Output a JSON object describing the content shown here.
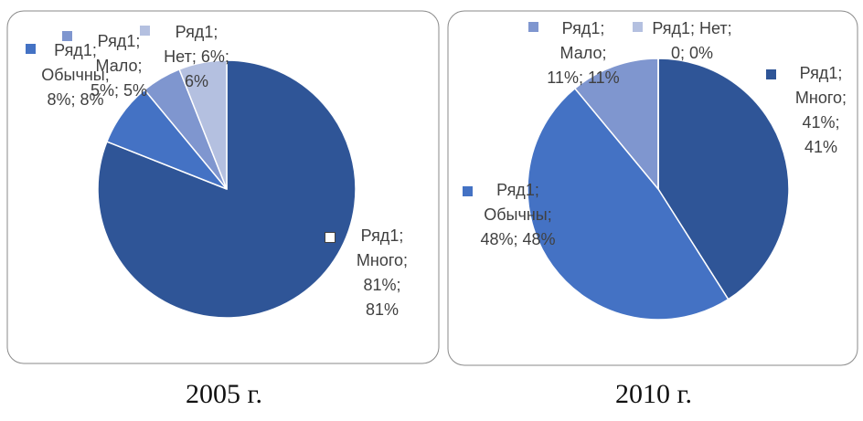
{
  "chart_data": [
    {
      "type": "pie",
      "title": "2005 г.",
      "series": [
        {
          "name": "Ряд1",
          "categories": [
            "Много",
            "Обычны",
            "Мало",
            "Нет"
          ],
          "values": [
            81,
            8,
            5,
            6
          ],
          "colors": [
            "#2f5597",
            "#4472c4",
            "#7f96cf",
            "#b4c0e0"
          ],
          "value_labels": [
            "Ряд1; Много; 81%; 81%",
            "Ряд1; Обычны; 8%; 8%",
            "Ряд1; Мало; 5%; 5%",
            "Ряд1; Нет; 6%; 6%"
          ]
        }
      ]
    },
    {
      "type": "pie",
      "title": "2010 г.",
      "series": [
        {
          "name": "Ряд1",
          "categories": [
            "Много",
            "Обычны",
            "Мало",
            "Нет"
          ],
          "values": [
            41,
            48,
            11,
            0
          ],
          "colors": [
            "#2f5597",
            "#4472c4",
            "#7f96cf",
            "#b4c0e0"
          ],
          "value_labels": [
            "Ряд1; Много; 41%; 41%",
            "Ряд1; Обычны; 48%; 48%",
            "Ряд1; Мало; 11%; 11%",
            "Ряд1; Нет; 0; 0%"
          ]
        }
      ]
    }
  ]
}
